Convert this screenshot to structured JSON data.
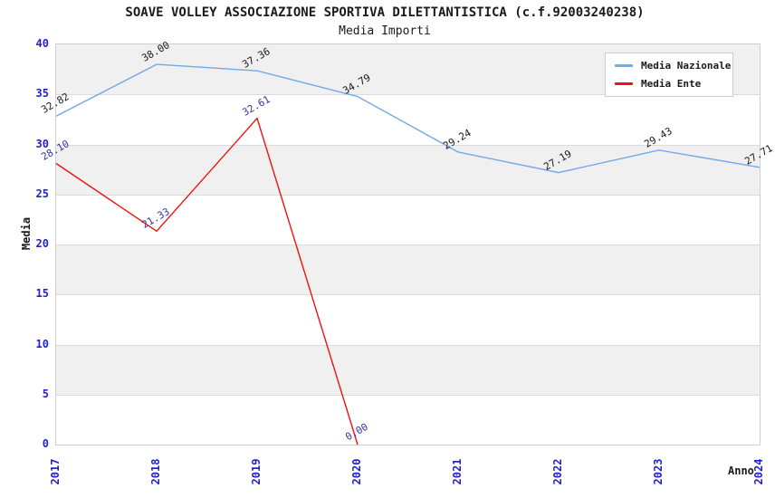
{
  "title": "SOAVE VOLLEY ASSOCIAZIONE SPORTIVA DILETTANTISTICA (c.f.92003240238)",
  "subtitle": "Media Importi",
  "colors": {
    "nazionale_line": "#73A9E6",
    "ente_line": "#EE1111",
    "tick_label": "#2222CC",
    "nazionale_data_label": "#1a1a1a",
    "ente_data_label": "#3333AA",
    "band_fill": "#F0F0F0",
    "grid_line": "#DCDCDC"
  },
  "chart_data": {
    "type": "line",
    "title": "SOAVE VOLLEY ASSOCIAZIONE SPORTIVA DILETTANTISTICA (c.f.92003240238)",
    "subtitle": "Media Importi",
    "xlabel": "Anno",
    "ylabel": "Media",
    "x": [
      2017,
      2018,
      2019,
      2020,
      2021,
      2022,
      2023,
      2024
    ],
    "x_tick_labels": [
      "2017",
      "2018",
      "2019",
      "2020",
      "2021",
      "2022",
      "2023",
      "2024"
    ],
    "ylim": [
      0,
      40
    ],
    "yticks": [
      0,
      5,
      10,
      15,
      20,
      25,
      30,
      35,
      40
    ],
    "grid": "horizontal-bands",
    "legend_position": "top-right",
    "series": [
      {
        "name": "Media Nazionale",
        "color": "#73A9E6",
        "label_color": "#1a1a1a",
        "values": [
          32.82,
          38.0,
          37.36,
          34.79,
          29.24,
          27.19,
          29.43,
          27.71
        ],
        "labels": [
          "32.82",
          "38.00",
          "37.36",
          "34.79",
          "29.24",
          "27.19",
          "29.43",
          "27.71"
        ]
      },
      {
        "name": "Media Ente",
        "color": "#EE1111",
        "label_color": "#3333AA",
        "values": [
          28.1,
          21.33,
          32.61,
          0.0,
          null,
          null,
          null,
          null
        ],
        "labels": [
          "28.10",
          "21.33",
          "32.61",
          "0.00",
          null,
          null,
          null,
          null
        ]
      }
    ]
  }
}
